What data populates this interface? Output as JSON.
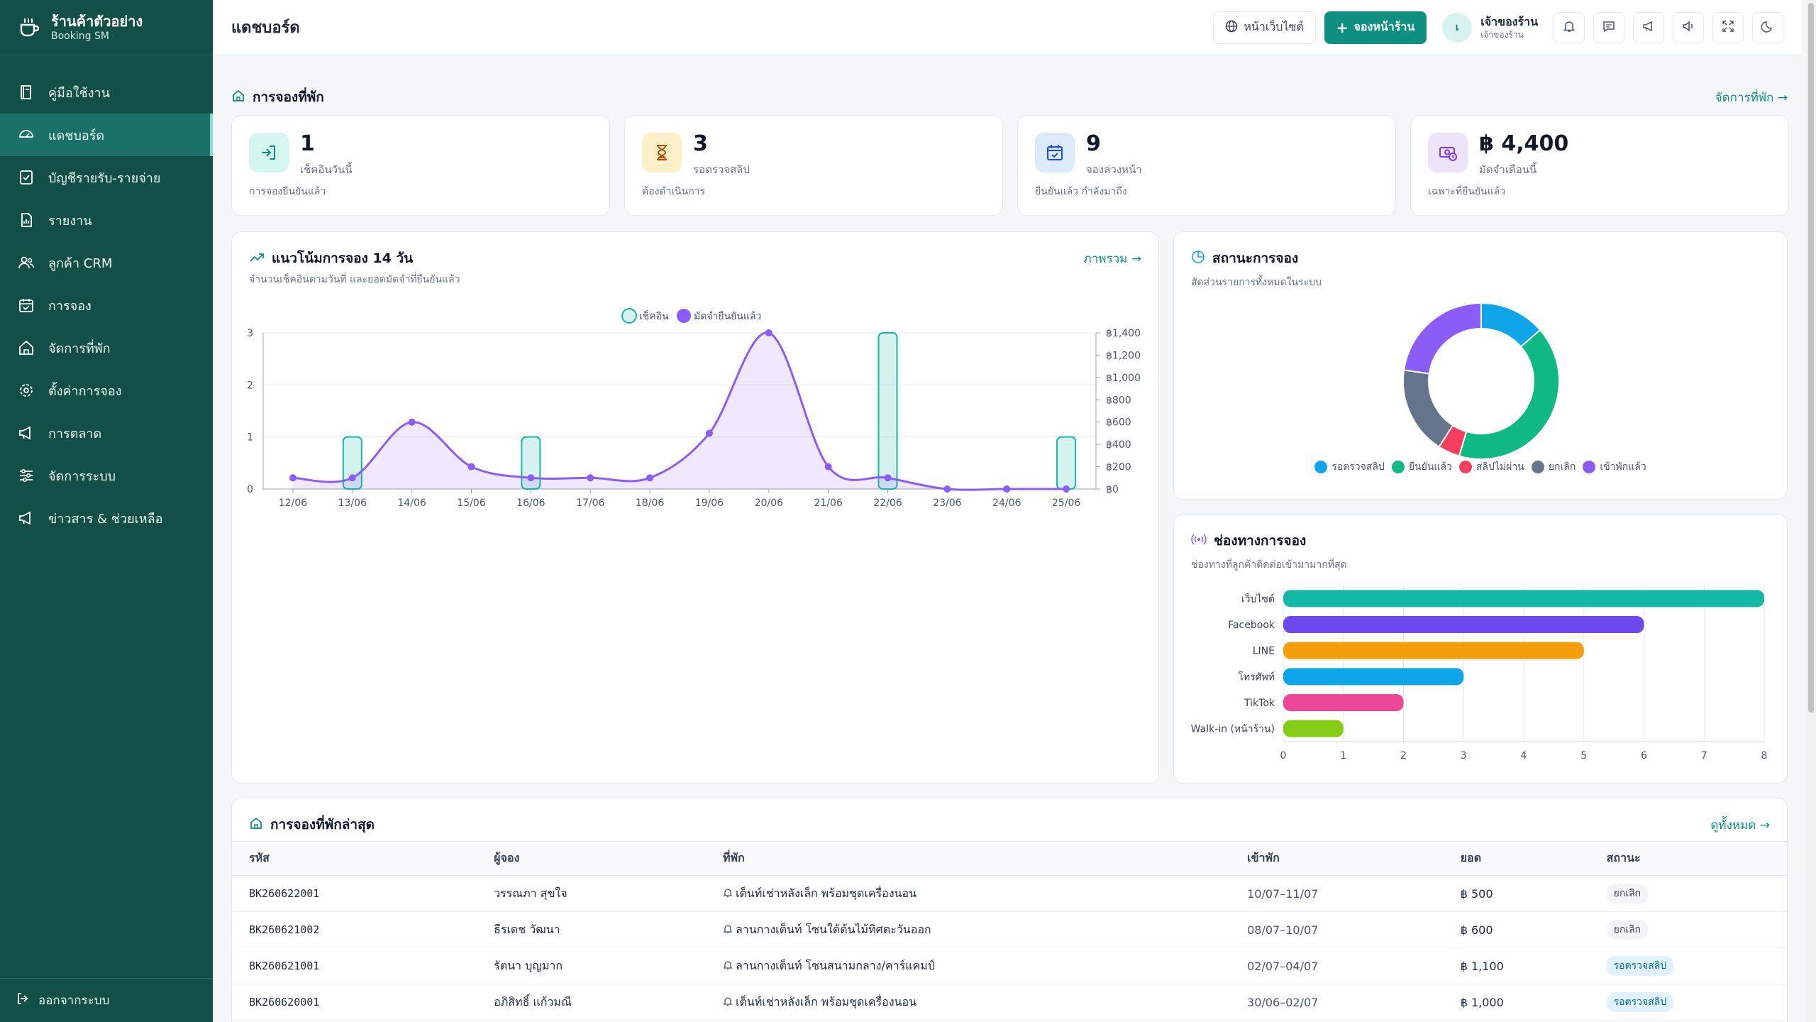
{
  "brand": {
    "title": "ร้านค้าตัวอย่าง",
    "subtitle": "Booking SM"
  },
  "nav": [
    {
      "label": "คู่มือใช้งาน",
      "icon": "book-icon",
      "active": false
    },
    {
      "label": "แดชบอร์ด",
      "icon": "dashboard-icon",
      "active": true
    },
    {
      "label": "บัญชีรายรับ-รายจ่าย",
      "icon": "ledger-icon",
      "active": false
    },
    {
      "label": "รายงาน",
      "icon": "report-icon",
      "active": false
    },
    {
      "label": "ลูกค้า CRM",
      "icon": "users-icon",
      "active": false
    },
    {
      "label": "การจอง",
      "icon": "calendar-icon",
      "active": false
    },
    {
      "label": "จัดการที่พัก",
      "icon": "house-icon",
      "active": false
    },
    {
      "label": "ตั้งค่าการจอง",
      "icon": "gear-icon",
      "active": false
    },
    {
      "label": "การตลาด",
      "icon": "megaphone-icon",
      "active": false
    },
    {
      "label": "จัดการระบบ",
      "icon": "sliders-icon",
      "active": false
    },
    {
      "label": "ข่าวสาร & ช่วยเหลือ",
      "icon": "megaphone-icon",
      "active": false
    }
  ],
  "logout_label": "ออกจากระบบ",
  "header": {
    "title": "แดชบอร์ด",
    "website_button": "หน้าเว็บไซต์",
    "book_button": "จองหน้าร้าน",
    "user_initial": "เ",
    "user_name": "เจ้าของร้าน",
    "user_role": "เจ้าของร้าน"
  },
  "booking_section": {
    "title": "การจองที่พัก",
    "link": "จัดการที่พัก →"
  },
  "stats": [
    {
      "value": "1",
      "label": "เช็คอินวันนี้",
      "note": "การจองยืนยันแล้ว",
      "icon": "checkin-icon",
      "bg": "#d5f5ef",
      "fg": "#0f8f80"
    },
    {
      "value": "3",
      "label": "รอตรวจสลิป",
      "note": "ต้องดำเนินการ",
      "icon": "hourglass-icon",
      "bg": "#fdf0c8",
      "fg": "#b45309"
    },
    {
      "value": "9",
      "label": "จองล่วงหน้า",
      "note": "ยืนยันแล้ว กำลังมาถึง",
      "icon": "calendar-check-icon",
      "bg": "#dbeafe",
      "fg": "#1d4ed8"
    },
    {
      "value": "฿ 4,400",
      "label": "มัดจำเดือนนี้",
      "note": "เฉพาะที่ยืนยันแล้ว",
      "icon": "money-icon",
      "bg": "#ece4fb",
      "fg": "#7c3aed"
    }
  ],
  "trend": {
    "title": "แนวโน้มการจอง 14 วัน",
    "subtitle": "จำนวนเช็คอินตามวันที่ และยอดมัดจำที่ยืนยันแล้ว",
    "link": "ภาพรวม →"
  },
  "status_card": {
    "title": "สถานะการจอง",
    "subtitle": "สัดส่วนรายการทั้งหมดในระบบ"
  },
  "channel_card": {
    "title": "ช่องทางการจอง",
    "subtitle": "ช่องทางที่ลูกค้าติดต่อเข้ามามากที่สุด"
  },
  "chart_data": [
    {
      "type": "bar+line",
      "categories": [
        "12/06",
        "13/06",
        "14/06",
        "15/06",
        "16/06",
        "17/06",
        "18/06",
        "19/06",
        "20/06",
        "21/06",
        "22/06",
        "23/06",
        "24/06",
        "25/06"
      ],
      "series": [
        {
          "name": "เช็คอิน",
          "kind": "bar",
          "axis": "left",
          "color": "#14b8a6",
          "values": [
            0,
            1,
            0,
            0,
            1,
            0,
            0,
            0,
            0,
            0,
            3,
            0,
            0,
            1
          ]
        },
        {
          "name": "มัดจำยืนยันแล้ว",
          "kind": "area",
          "axis": "right",
          "color": "#8b5cf6",
          "values": [
            100,
            100,
            600,
            200,
            100,
            100,
            100,
            500,
            1400,
            200,
            100,
            0,
            0,
            0
          ]
        }
      ],
      "ylim_left": [
        0,
        3
      ],
      "yticks_left": [
        "0",
        "1",
        "2",
        "3"
      ],
      "ylim_right": [
        0,
        1400
      ],
      "yticks_right": [
        "฿0",
        "฿200",
        "฿400",
        "฿600",
        "฿800",
        "฿1,000",
        "฿1,200",
        "฿1,400"
      ],
      "legend": "top"
    },
    {
      "type": "pie",
      "donut": true,
      "labels": [
        "รอตรวจสลิป",
        "ยืนยันแล้ว",
        "สลิปไม่ผ่าน",
        "ยกเลิก",
        "เข้าพักแล้ว"
      ],
      "values": [
        3,
        9,
        1,
        4,
        5
      ],
      "colors": [
        "#0ea5e9",
        "#10b981",
        "#f43f5e",
        "#64748b",
        "#8b5cf6"
      ],
      "legend": "bottom"
    },
    {
      "type": "bar",
      "orientation": "horizontal",
      "categories": [
        "เว็บไซต์",
        "Facebook",
        "LINE",
        "โทรศัพท์",
        "TikTok",
        "Walk-in (หน้าร้าน)"
      ],
      "values": [
        8,
        6,
        5,
        3,
        2,
        1
      ],
      "colors": [
        "#14b8a6",
        "#6d4aed",
        "#f59e0b",
        "#0ea5e9",
        "#ec4899",
        "#84cc16"
      ],
      "xlim": [
        0,
        8
      ],
      "xticks": [
        "0",
        "1",
        "2",
        "3",
        "4",
        "5",
        "6",
        "7",
        "8"
      ]
    }
  ],
  "recent": {
    "title": "การจองที่พักล่าสุด",
    "link": "ดูทั้งหมด →",
    "columns": [
      "รหัส",
      "ผู้จอง",
      "ที่พัก",
      "เข้าพัก",
      "ยอด",
      "สถานะ"
    ],
    "rows": [
      {
        "code": "BK260622001",
        "name": "วรรณภา สุขใจ",
        "unit": "เต็นท์เช่าหลังเล็ก พร้อมชุดเครื่องนอน",
        "dates": "10/07–11/07",
        "amount": "฿ 500",
        "status": "ยกเลิก",
        "status_kind": "cancel"
      },
      {
        "code": "BK260621002",
        "name": "ธีรเดช วัฒนา",
        "unit": "ลานกางเต็นท์ โซนใต้ต้นไม้ทิศตะวันออก",
        "dates": "08/07–10/07",
        "amount": "฿ 600",
        "status": "ยกเลิก",
        "status_kind": "cancel"
      },
      {
        "code": "BK260621001",
        "name": "รัตนา บุญมาก",
        "unit": "ลานกางเต็นท์ โซนสนามกลาง/คาร์แคมป์",
        "dates": "02/07–04/07",
        "amount": "฿ 1,100",
        "status": "รอตรวจสลิป",
        "status_kind": "pending"
      },
      {
        "code": "BK260620001",
        "name": "อภิสิทธิ์ แก้วมณี",
        "unit": "เต็นท์เช่าหลังเล็ก พร้อมชุดเครื่องนอน",
        "dates": "30/06–02/07",
        "amount": "฿ 1,000",
        "status": "รอตรวจสลิป",
        "status_kind": "pending"
      }
    ]
  }
}
